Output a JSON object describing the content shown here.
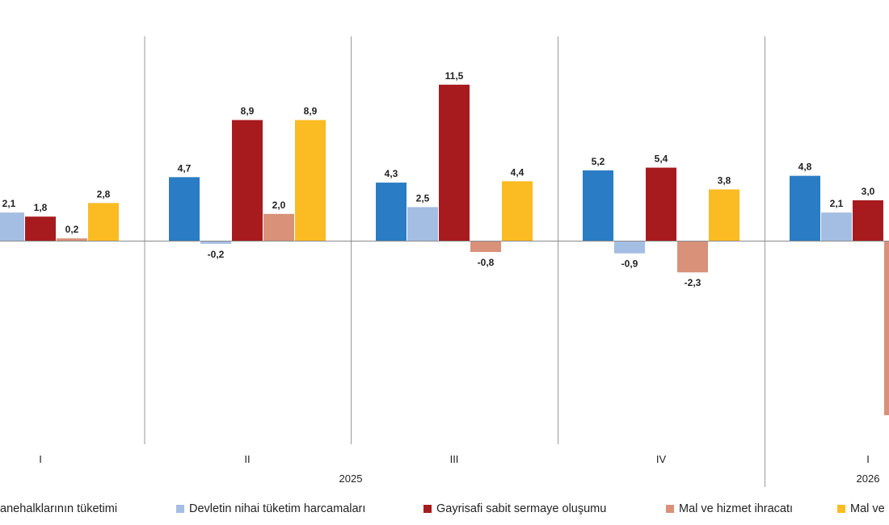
{
  "chart_data": {
    "type": "bar",
    "categories": [
      "I",
      "II",
      "III",
      "IV",
      "I"
    ],
    "groups": [
      {
        "label": "2025",
        "categories": [
          "I",
          "II",
          "III",
          "IV"
        ]
      },
      {
        "label": "2026",
        "categories": [
          "I"
        ]
      }
    ],
    "series": [
      {
        "name": "anehalklarının tüketimi",
        "color": "#2a7cc4",
        "values": [
          null,
          4.7,
          4.3,
          5.2,
          4.8
        ],
        "labels": [
          "",
          "4,7",
          "4,3",
          "5,2",
          "4,8"
        ]
      },
      {
        "name": "Devletin nihai tüketim harcamaları",
        "color": "#a4bde2",
        "values": [
          2.1,
          -0.2,
          2.5,
          -0.9,
          2.1
        ],
        "labels": [
          "2,1",
          "-0,2",
          "2,5",
          "-0,9",
          "2,1"
        ]
      },
      {
        "name": "Gayrisafi sabit sermaye oluşumu",
        "color": "#a71b1e",
        "values": [
          1.8,
          8.9,
          11.5,
          5.4,
          3.0
        ],
        "labels": [
          "1,8",
          "8,9",
          "11,5",
          "5,4",
          "3,0"
        ]
      },
      {
        "name": "Mal ve hizmet ihracatı",
        "color": "#d9917a",
        "values": [
          0.2,
          2.0,
          -0.8,
          -2.3,
          -12.8
        ],
        "labels": [
          "0,2",
          "2,0",
          "-0,8",
          "-2,3",
          ""
        ]
      },
      {
        "name": "Mal ve",
        "color": "#fbbb22",
        "values": [
          2.8,
          8.9,
          4.4,
          3.8,
          null
        ],
        "labels": [
          "2,8",
          "8,9",
          "4,4",
          "3,8",
          ""
        ]
      }
    ],
    "grid": false,
    "legend": "bottom"
  }
}
